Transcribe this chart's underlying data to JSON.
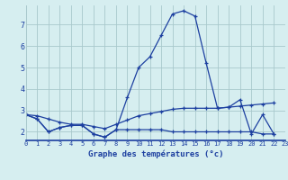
{
  "xlabel": "Graphe des températures (°c)",
  "background_color": "#d6eef0",
  "grid_color": "#a8c8cc",
  "line_color": "#1c3fa0",
  "x_ticks": [
    0,
    1,
    2,
    3,
    4,
    5,
    6,
    7,
    8,
    9,
    10,
    11,
    12,
    13,
    14,
    15,
    16,
    17,
    18,
    19,
    20,
    21,
    22,
    23
  ],
  "y_ticks": [
    2,
    3,
    4,
    5,
    6,
    7
  ],
  "xlim": [
    0,
    23
  ],
  "ylim": [
    1.6,
    7.9
  ],
  "line1_y": [
    2.8,
    2.6,
    2.0,
    2.2,
    2.3,
    2.3,
    1.9,
    1.75,
    2.1,
    3.6,
    5.0,
    5.5,
    6.5,
    7.5,
    7.65,
    7.4,
    5.2,
    3.1,
    3.15,
    3.5,
    1.9,
    2.8,
    1.9
  ],
  "line2_y": [
    2.8,
    2.6,
    2.0,
    2.2,
    2.3,
    2.3,
    1.9,
    1.75,
    2.1,
    2.1,
    2.1,
    2.1,
    2.1,
    2.0,
    2.0,
    2.0,
    2.0,
    2.0,
    2.0,
    2.0,
    2.0,
    1.9,
    1.9
  ],
  "line3_y": [
    2.8,
    2.75,
    2.6,
    2.45,
    2.35,
    2.35,
    2.25,
    2.15,
    2.35,
    2.55,
    2.75,
    2.85,
    2.95,
    3.05,
    3.1,
    3.1,
    3.1,
    3.1,
    3.15,
    3.2,
    3.25,
    3.3,
    3.35
  ],
  "line1_x_start": 0,
  "line2_x_start": 0,
  "line3_x_start": 0
}
